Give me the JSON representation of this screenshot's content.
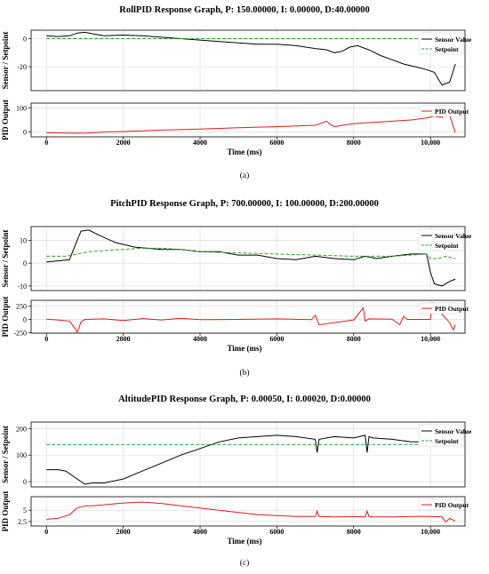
{
  "chart_data": [
    {
      "panel_caption": "(a)",
      "title": "RollPID Response Graph, P: 150.00000, I: 0.00000, D:40.00000",
      "xlabel": "Time (ms)",
      "xlim": [
        -400,
        10900
      ],
      "xticks": [
        0,
        2000,
        4000,
        6000,
        8000,
        "10,000"
      ],
      "grid": true,
      "top": {
        "type": "line",
        "ylabel": "Sensor / Setpoint",
        "ylim": [
          -37,
          6
        ],
        "yticks": [
          0,
          -20
        ],
        "legend_position": "top-right",
        "series": [
          {
            "name": "Sensor Value",
            "color": "#000000",
            "dash": "",
            "x": [
              0,
              300,
              600,
              800,
              1000,
              1200,
              1500,
              2000,
              2500,
              3000,
              3500,
              4000,
              4500,
              5000,
              5500,
              6000,
              6500,
              7000,
              7300,
              7500,
              7700,
              7900,
              8100,
              8400,
              8700,
              9000,
              9300,
              9600,
              9900,
              10100,
              10300,
              10500,
              10650
            ],
            "y": [
              2,
              1.5,
              2,
              4,
              4.5,
              3.5,
              2,
              2.5,
              2,
              1,
              0,
              -1,
              -2,
              -3,
              -4,
              -4,
              -5,
              -7,
              -8,
              -10,
              -9,
              -6,
              -5,
              -8,
              -12,
              -15,
              -18,
              -20,
              -22,
              -24,
              -33,
              -31,
              -18
            ]
          },
          {
            "name": "Setpoint",
            "color": "#2ca02c",
            "dash": "4,2",
            "x": [
              0,
              10650
            ],
            "y": [
              0,
              0
            ]
          }
        ]
      },
      "bottom": {
        "type": "line",
        "ylabel": "PID Output",
        "ylim": [
          -20,
          120
        ],
        "yticks": [
          100,
          0
        ],
        "legend_position": "top-right",
        "series": [
          {
            "name": "PID Output",
            "color": "#e41a1c",
            "dash": "",
            "x": [
              0,
              500,
              1000,
              1500,
              2000,
              2500,
              3000,
              3500,
              4000,
              4500,
              5000,
              5500,
              6000,
              6500,
              7000,
              7300,
              7400,
              7500,
              7700,
              8000,
              8500,
              9000,
              9500,
              9900,
              10100,
              10300,
              10400,
              10500,
              10650
            ],
            "y": [
              -3,
              -4,
              -5,
              0,
              2,
              5,
              8,
              10,
              12,
              15,
              18,
              20,
              22,
              25,
              28,
              45,
              30,
              22,
              28,
              35,
              40,
              45,
              50,
              58,
              65,
              60,
              95,
              70,
              -2
            ]
          }
        ]
      }
    },
    {
      "panel_caption": "(b)",
      "title": "PitchPID Response Graph, P: 700.00000, I: 100.00000, D:200.00000",
      "xlabel": "Time (ms)",
      "xlim": [
        -400,
        10900
      ],
      "xticks": [
        0,
        2000,
        4000,
        6000,
        8000,
        "10,000"
      ],
      "grid": true,
      "top": {
        "type": "line",
        "ylabel": "Sensor / Setpoint",
        "ylim": [
          -12,
          16
        ],
        "yticks": [
          10,
          0,
          -10
        ],
        "legend_position": "top-right",
        "series": [
          {
            "name": "Sensor Value",
            "color": "#000000",
            "dash": "",
            "x": [
              0,
              300,
              600,
              750,
              900,
              1100,
              1400,
              1800,
              2300,
              3000,
              3500,
              4000,
              4500,
              5000,
              5500,
              6000,
              6500,
              7000,
              7500,
              8000,
              8300,
              8600,
              9000,
              9500,
              9900,
              10000,
              10100,
              10300,
              10500,
              10650
            ],
            "y": [
              0.5,
              1,
              1.5,
              8,
              14,
              14.5,
              12,
              9,
              7,
              6,
              6,
              5,
              5,
              3.5,
              3.5,
              2,
              1.5,
              3,
              2,
              1.5,
              3,
              2,
              3,
              4,
              4,
              -4,
              -9,
              -10,
              -8,
              -7
            ]
          },
          {
            "name": "Setpoint",
            "color": "#2ca02c",
            "dash": "4,2",
            "x": [
              0,
              500,
              800,
              1100,
              1500,
              2000,
              2500,
              3000,
              3500,
              4000,
              5000,
              6000,
              7000,
              8000,
              9000,
              9900,
              10000,
              10200,
              10400,
              10650
            ],
            "y": [
              3,
              3,
              4,
              5,
              5.5,
              6,
              6.5,
              6.5,
              6,
              5,
              4.5,
              4,
              3.5,
              3,
              3,
              4,
              2,
              2,
              3,
              2
            ]
          }
        ]
      },
      "bottom": {
        "type": "line",
        "ylabel": "PID Output",
        "ylim": [
          -260,
          360
        ],
        "yticks": [
          250,
          0,
          -250
        ],
        "legend_position": "top-right",
        "series": [
          {
            "name": "PID Output",
            "color": "#e41a1c",
            "dash": "",
            "x": [
              0,
              300,
              600,
              750,
              800,
              850,
              900,
              1000,
              1500,
              2000,
              2500,
              3000,
              3500,
              4000,
              5000,
              6000,
              6900,
              7000,
              7100,
              8000,
              8250,
              8300,
              8400,
              9000,
              9200,
              9300,
              9400,
              10000,
              10050,
              10100,
              10200,
              10300,
              10500,
              10600,
              10650
            ],
            "y": [
              5,
              -10,
              -30,
              -180,
              -240,
              -150,
              -50,
              0,
              10,
              -20,
              15,
              -10,
              20,
              -5,
              0,
              10,
              -5,
              80,
              -100,
              -10,
              220,
              -30,
              10,
              5,
              -100,
              60,
              0,
              0,
              320,
              150,
              300,
              100,
              -60,
              -200,
              -100
            ]
          }
        ]
      }
    },
    {
      "panel_caption": "(c)",
      "title": "AltitudePID Response Graph, P: 0.00050, I: 0.00020, D:0.00000",
      "xlabel": "Time (ms)",
      "xlim": [
        -400,
        10900
      ],
      "xticks": [
        0,
        2000,
        4000,
        6000,
        8000,
        "10,000"
      ],
      "grid": true,
      "top": {
        "type": "line",
        "ylabel": "Sensor / Setpoint",
        "ylim": [
          -20,
          225
        ],
        "yticks": [
          200,
          100,
          0
        ],
        "legend_position": "top-right",
        "series": [
          {
            "name": "Sensor Value",
            "color": "#000000",
            "dash": "",
            "x": [
              0,
              300,
              500,
              800,
              1000,
              1200,
              1500,
              2000,
              2500,
              3000,
              3500,
              4000,
              4500,
              5000,
              5500,
              6000,
              6500,
              7000,
              7050,
              7100,
              7500,
              8000,
              8300,
              8350,
              8400,
              8500,
              9000,
              9500,
              10000,
              10500,
              10650
            ],
            "y": [
              45,
              45,
              40,
              10,
              -10,
              -5,
              -5,
              10,
              40,
              70,
              100,
              125,
              150,
              165,
              170,
              175,
              170,
              160,
              110,
              160,
              170,
              165,
              175,
              110,
              170,
              165,
              160,
              150,
              150,
              150,
              150
            ]
          },
          {
            "name": "Setpoint",
            "color": "#2ca02c",
            "dash": "4,2",
            "x": [
              0,
              10650
            ],
            "y": [
              140,
              140
            ]
          }
        ]
      },
      "bottom": {
        "type": "line",
        "ylabel": "PID Output",
        "ylim": [
          1.5,
          8
        ],
        "yticks": [
          5.0,
          2.5
        ],
        "legend_position": "top-right",
        "series": [
          {
            "name": "PID Output",
            "color": "#e41a1c",
            "dash": "",
            "x": [
              0,
              300,
              600,
              800,
              1000,
              1200,
              1500,
              2000,
              2500,
              3000,
              3500,
              4000,
              4500,
              5000,
              5500,
              6000,
              6500,
              7000,
              7050,
              7100,
              7500,
              8000,
              8300,
              8350,
              8400,
              8500,
              9000,
              9500,
              10000,
              10300,
              10400,
              10500,
              10650
            ],
            "y": [
              3,
              3.2,
              4,
              5.5,
              6,
              6,
              6.2,
              6.6,
              6.8,
              6.5,
              6,
              5.5,
              5,
              4.5,
              4,
              3.8,
              3.6,
              3.6,
              4.8,
              3.6,
              3.5,
              3.6,
              3.5,
              4.8,
              3.6,
              3.5,
              3.5,
              3.6,
              3.6,
              3.5,
              2.4,
              3.2,
              2.6
            ]
          }
        ]
      }
    }
  ]
}
